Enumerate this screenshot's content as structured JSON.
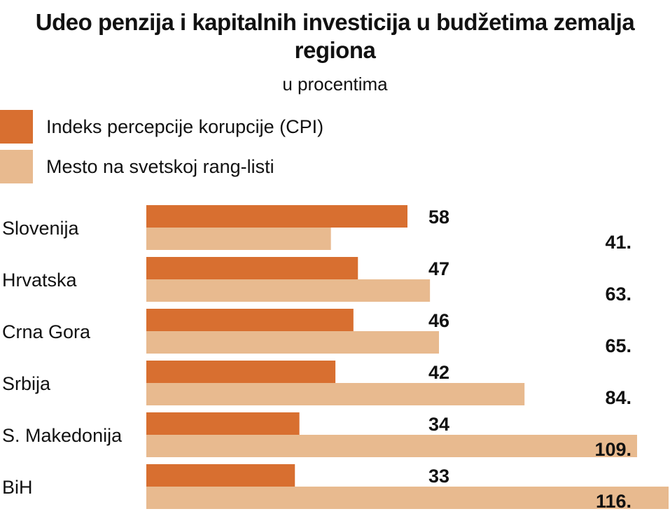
{
  "chart_data": {
    "type": "bar",
    "title": "Udeo penzija i kapitalnih investicija u budžetima zemalja regiona",
    "subtitle": "u procentima",
    "categories": [
      "Slovenija",
      "Hrvatska",
      "Crna Gora",
      "Srbija",
      "S. Makedonija",
      "BiH"
    ],
    "series": [
      {
        "name": "Indeks percepcije korupcije (CPI)",
        "values": [
          58,
          47,
          46,
          42,
          34,
          33
        ],
        "labels": [
          "58",
          "47",
          "46",
          "42",
          "34",
          "33"
        ],
        "color": "#d86f30"
      },
      {
        "name": "Mesto na svetskoj rang-listi",
        "values": [
          41,
          63,
          65,
          84,
          109,
          116
        ],
        "labels": [
          "41.",
          "63.",
          "65.",
          "84.",
          "109.",
          "116."
        ],
        "color": "#e8ba8f"
      }
    ],
    "xlim": [
      0,
      116
    ],
    "orientation": "horizontal",
    "grid": false,
    "legend": "top-left"
  }
}
